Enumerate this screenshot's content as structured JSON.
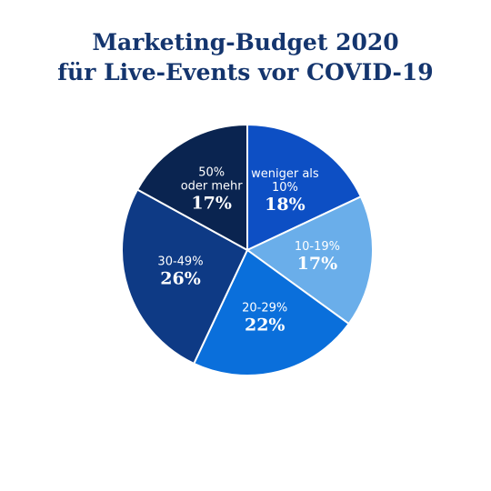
{
  "chart_data": {
    "type": "pie",
    "title_lines": [
      "Marketing-Budget 2020",
      "für Live-Events vor COVID-19"
    ],
    "slices": [
      {
        "label_lines": [
          "weniger als",
          "10%"
        ],
        "value_label": "18%",
        "value": 18,
        "color": "#0d4fc4"
      },
      {
        "label_lines": [
          "10-19%"
        ],
        "value_label": "17%",
        "value": 17,
        "color": "#6aaeea"
      },
      {
        "label_lines": [
          "20-29%"
        ],
        "value_label": "22%",
        "value": 22,
        "color": "#0a6fdb"
      },
      {
        "label_lines": [
          "30-49%"
        ],
        "value_label": "26%",
        "value": 26,
        "color": "#0e3a85"
      },
      {
        "label_lines": [
          "50%",
          "oder mehr"
        ],
        "value_label": "17%",
        "value": 17,
        "color": "#0a2450"
      }
    ]
  }
}
